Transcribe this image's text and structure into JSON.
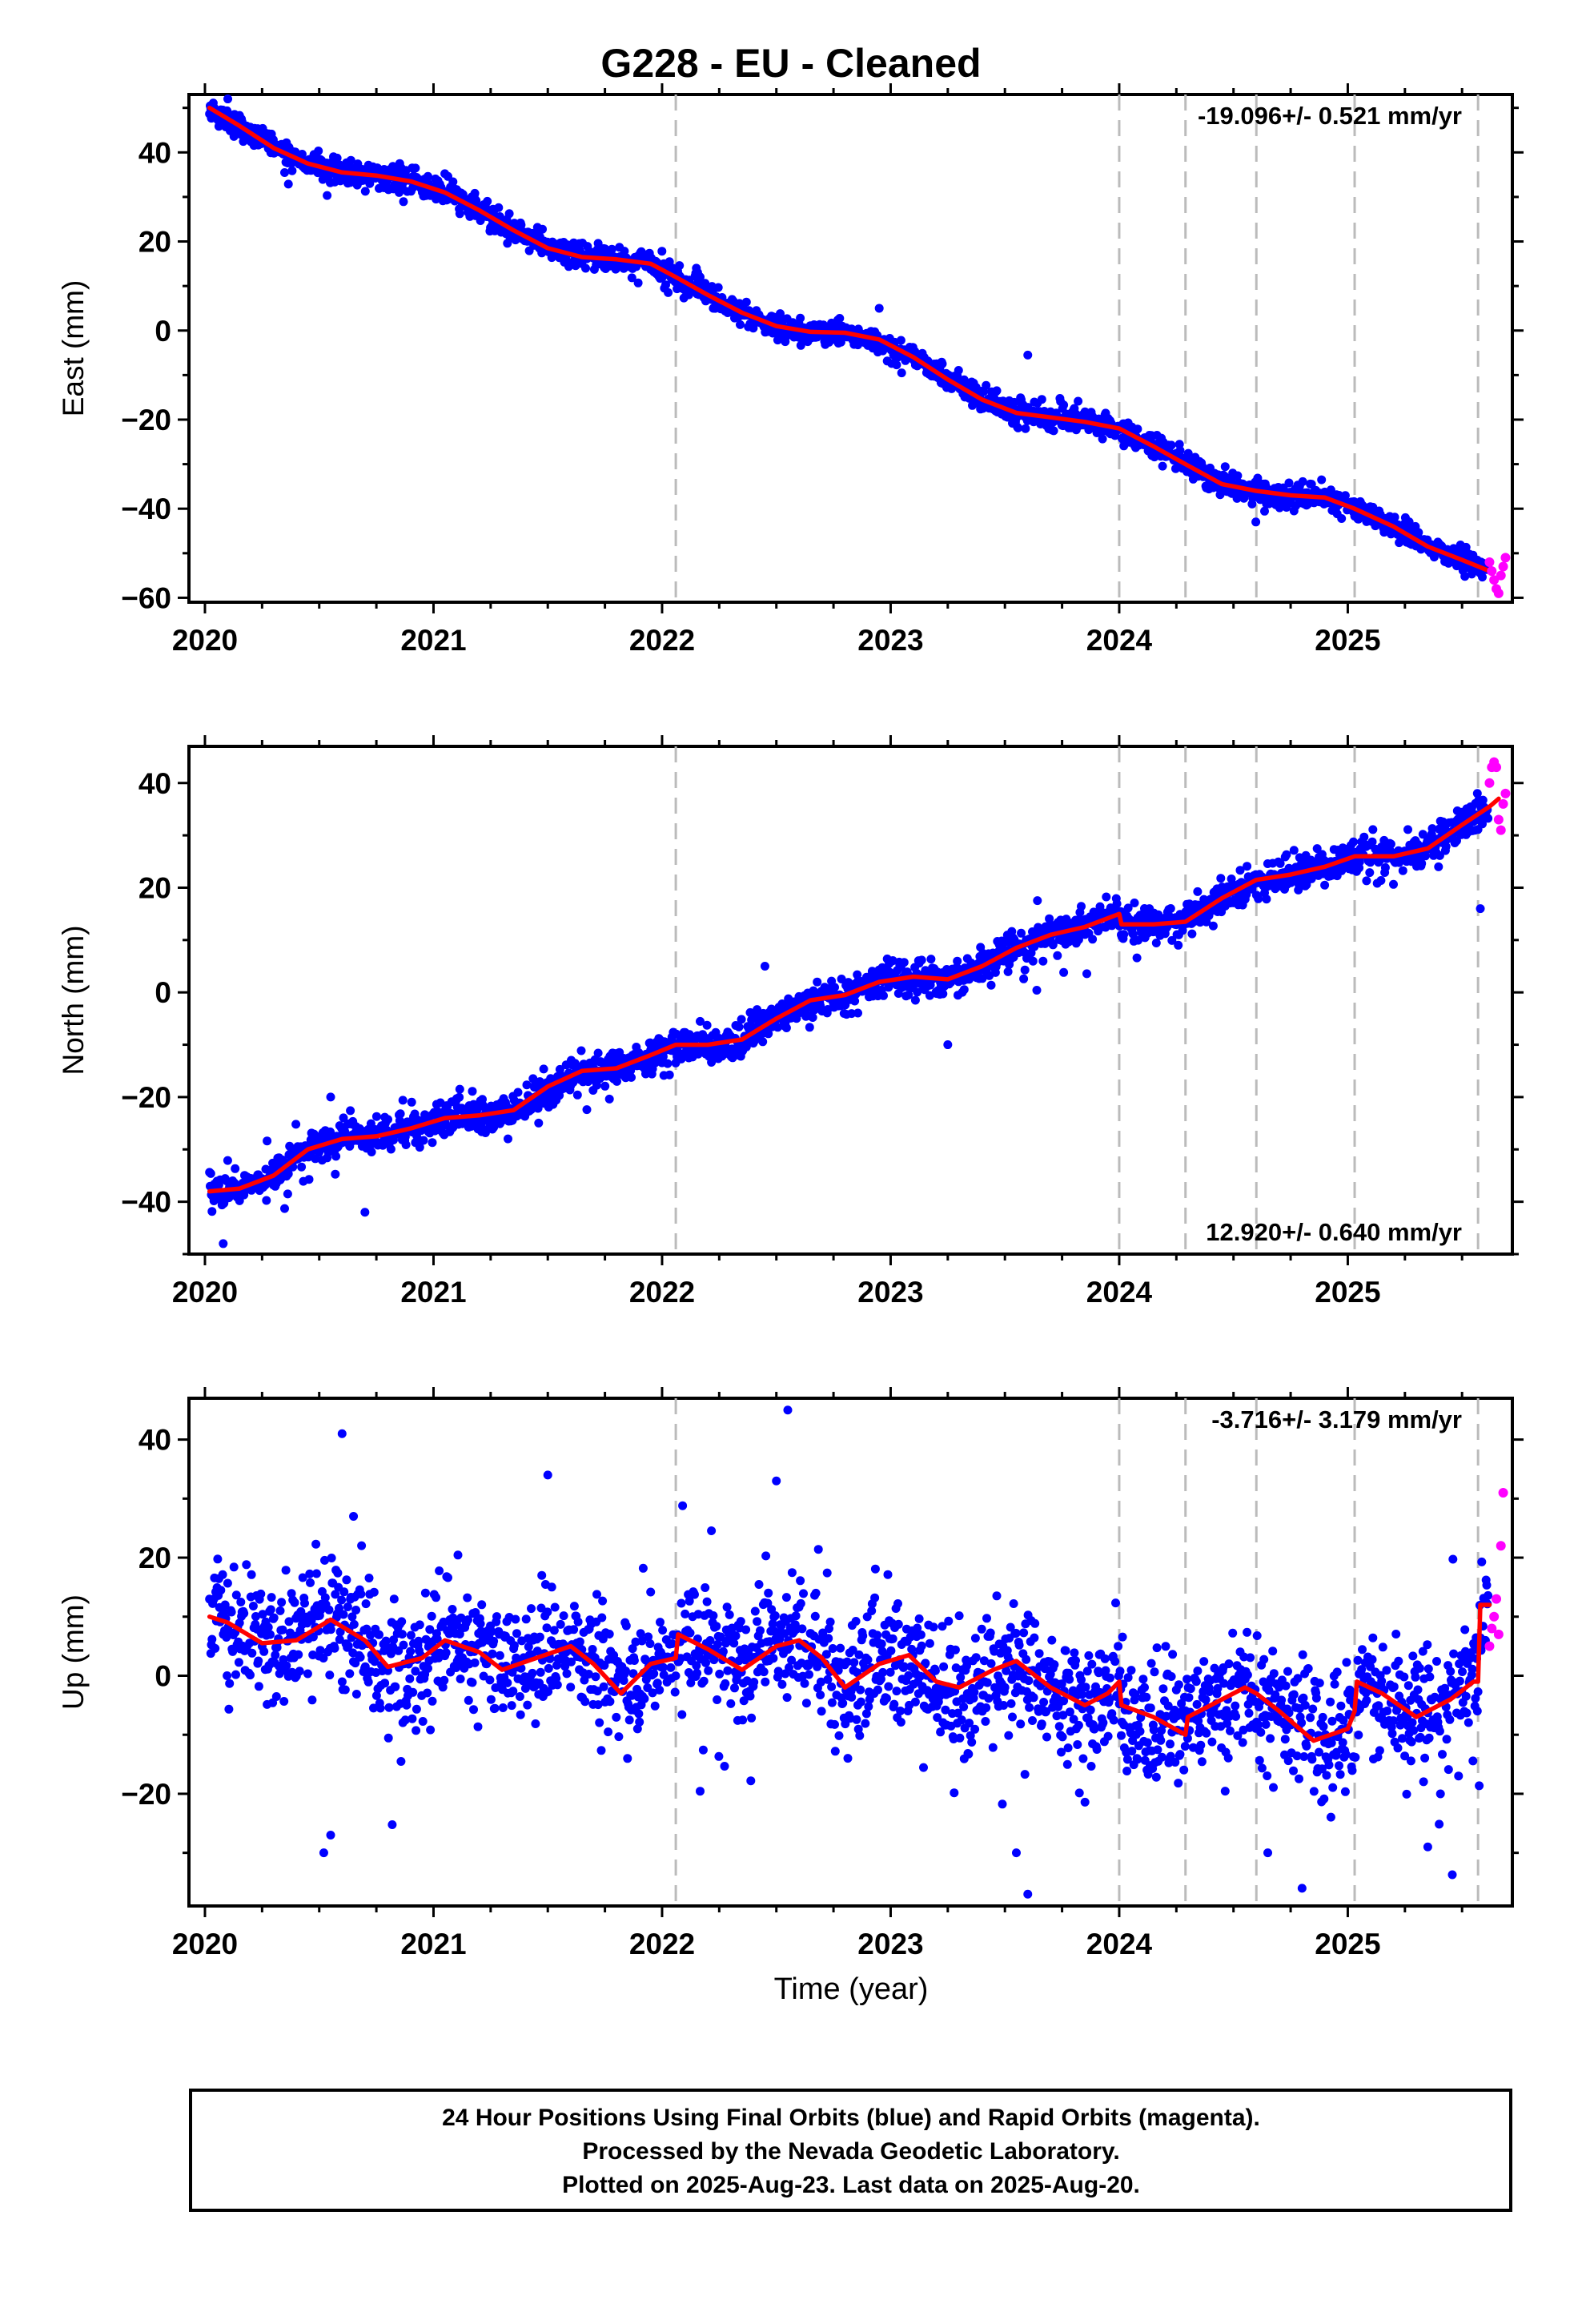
{
  "title": "G228  - EU - Cleaned",
  "x_axis_label": "Time (year)",
  "footer": {
    "line1": "24 Hour Positions Using Final Orbits (blue) and Rapid Orbits (magenta).",
    "line2": "Processed by the Nevada Geodetic Laboratory.",
    "line3": "Plotted on 2025-Aug-23. Last data on 2025-Aug-20."
  },
  "colors": {
    "final_orbits": "#0000ff",
    "rapid_orbits": "#ff00ff",
    "model": "#ff0000",
    "steps": "#bbbbbb"
  },
  "chart_data": [
    {
      "type": "scatter",
      "component": "East",
      "ylabel": "East (mm)",
      "rate_label": "-19.096+/- 0.521 mm/yr",
      "rate_position": "top-right",
      "xlim": [
        2019.93,
        2025.72
      ],
      "ylim": [
        -61,
        53
      ],
      "xticks": [
        2020,
        2021,
        2022,
        2023,
        2024,
        2025
      ],
      "yticks": [
        -60,
        -40,
        -20,
        0,
        20,
        40
      ],
      "step_dates": [
        2022.06,
        2024.0,
        2024.29,
        2024.6,
        2025.03,
        2025.57
      ],
      "model_knots": [
        [
          2020.02,
          50
        ],
        [
          2020.15,
          46
        ],
        [
          2020.3,
          41
        ],
        [
          2020.45,
          37.5
        ],
        [
          2020.6,
          35.5
        ],
        [
          2020.75,
          34.8
        ],
        [
          2020.9,
          33.5
        ],
        [
          2021.05,
          31
        ],
        [
          2021.2,
          27
        ],
        [
          2021.35,
          22.5
        ],
        [
          2021.5,
          18.5
        ],
        [
          2021.65,
          16.5
        ],
        [
          2021.8,
          16
        ],
        [
          2021.95,
          15
        ],
        [
          2022.06,
          12
        ],
        [
          2022.2,
          8
        ],
        [
          2022.35,
          4
        ],
        [
          2022.5,
          1
        ],
        [
          2022.65,
          -0.3
        ],
        [
          2022.8,
          -0.5
        ],
        [
          2022.95,
          -2
        ],
        [
          2023.1,
          -6
        ],
        [
          2023.25,
          -11
        ],
        [
          2023.4,
          -15.5
        ],
        [
          2023.55,
          -18.5
        ],
        [
          2023.7,
          -19.5
        ],
        [
          2023.85,
          -20.5
        ],
        [
          2024.0,
          -22
        ],
        [
          2024.15,
          -26
        ],
        [
          2024.29,
          -30
        ],
        [
          2024.45,
          -34.5
        ],
        [
          2024.6,
          -36
        ],
        [
          2024.75,
          -37
        ],
        [
          2024.9,
          -37.5
        ],
        [
          2025.03,
          -40
        ],
        [
          2025.2,
          -44
        ],
        [
          2025.35,
          -48.5
        ],
        [
          2025.5,
          -51.5
        ],
        [
          2025.62,
          -54
        ]
      ],
      "scatter_sd": 1.3,
      "outliers": [
        [
          2023.6,
          -5.5
        ],
        [
          2022.95,
          5
        ],
        [
          2020.1,
          52
        ]
      ],
      "rapid_points": [
        [
          2025.62,
          -52
        ],
        [
          2025.63,
          -54
        ],
        [
          2025.64,
          -56
        ],
        [
          2025.65,
          -58
        ],
        [
          2025.66,
          -59
        ],
        [
          2025.67,
          -55
        ],
        [
          2025.68,
          -53
        ],
        [
          2025.69,
          -51
        ]
      ]
    },
    {
      "type": "scatter",
      "component": "North",
      "ylabel": "North (mm)",
      "rate_label": "12.920+/- 0.640 mm/yr",
      "rate_position": "bottom-right",
      "xlim": [
        2019.93,
        2025.72
      ],
      "ylim": [
        -50,
        47
      ],
      "xticks": [
        2020,
        2021,
        2022,
        2023,
        2024,
        2025
      ],
      "yticks": [
        -40,
        -20,
        0,
        20,
        40
      ],
      "step_dates": [
        2022.06,
        2024.0,
        2024.29,
        2024.6,
        2025.03,
        2025.57
      ],
      "model_knots": [
        [
          2020.02,
          -38
        ],
        [
          2020.15,
          -37.5
        ],
        [
          2020.3,
          -35
        ],
        [
          2020.45,
          -30
        ],
        [
          2020.6,
          -28
        ],
        [
          2020.75,
          -27.5
        ],
        [
          2020.9,
          -26
        ],
        [
          2021.05,
          -24
        ],
        [
          2021.2,
          -23.5
        ],
        [
          2021.35,
          -22.5
        ],
        [
          2021.5,
          -18
        ],
        [
          2021.65,
          -15
        ],
        [
          2021.8,
          -14.5
        ],
        [
          2021.95,
          -12
        ],
        [
          2022.06,
          -10
        ],
        [
          2022.2,
          -10
        ],
        [
          2022.35,
          -9
        ],
        [
          2022.5,
          -5
        ],
        [
          2022.65,
          -1.5
        ],
        [
          2022.8,
          -0.5
        ],
        [
          2022.95,
          2
        ],
        [
          2023.1,
          3
        ],
        [
          2023.25,
          2.5
        ],
        [
          2023.4,
          5
        ],
        [
          2023.55,
          8.5
        ],
        [
          2023.7,
          11
        ],
        [
          2023.85,
          12.5
        ],
        [
          2024.0,
          15
        ],
        [
          2024.01,
          13
        ],
        [
          2024.15,
          13
        ],
        [
          2024.29,
          13.5
        ],
        [
          2024.45,
          18
        ],
        [
          2024.6,
          21.5
        ],
        [
          2024.75,
          22.5
        ],
        [
          2024.9,
          24
        ],
        [
          2025.03,
          26
        ],
        [
          2025.2,
          26
        ],
        [
          2025.35,
          27.5
        ],
        [
          2025.5,
          32
        ],
        [
          2025.62,
          35.5
        ],
        [
          2025.66,
          37
        ]
      ],
      "scatter_sd": 1.6,
      "outliers": [
        [
          2020.7,
          -42
        ],
        [
          2020.08,
          -48
        ],
        [
          2023.25,
          -10
        ],
        [
          2025.58,
          16
        ],
        [
          2020.55,
          -20
        ],
        [
          2022.45,
          5
        ]
      ],
      "rapid_points": [
        [
          2025.62,
          40
        ],
        [
          2025.63,
          43
        ],
        [
          2025.64,
          44
        ],
        [
          2025.65,
          43
        ],
        [
          2025.66,
          33
        ],
        [
          2025.67,
          31
        ],
        [
          2025.68,
          36
        ],
        [
          2025.69,
          38
        ]
      ]
    },
    {
      "type": "scatter",
      "component": "Up",
      "ylabel": "Up (mm)",
      "rate_label": "-3.716+/- 3.179 mm/yr",
      "rate_position": "top-right",
      "xlim": [
        2019.93,
        2025.72
      ],
      "ylim": [
        -39,
        47
      ],
      "xticks": [
        2020,
        2021,
        2022,
        2023,
        2024,
        2025
      ],
      "yticks": [
        -20,
        0,
        20,
        40
      ],
      "step_dates": [
        2022.06,
        2024.0,
        2024.29,
        2024.6,
        2025.03,
        2025.57
      ],
      "model_knots": [
        [
          2020.02,
          10
        ],
        [
          2020.1,
          9
        ],
        [
          2020.25,
          5.5
        ],
        [
          2020.4,
          6
        ],
        [
          2020.55,
          9.5
        ],
        [
          2020.7,
          6
        ],
        [
          2020.8,
          1.5
        ],
        [
          2020.95,
          3
        ],
        [
          2021.05,
          6
        ],
        [
          2021.2,
          4
        ],
        [
          2021.3,
          1
        ],
        [
          2021.45,
          3
        ],
        [
          2021.6,
          5
        ],
        [
          2021.7,
          2
        ],
        [
          2021.82,
          -3
        ],
        [
          2021.95,
          2
        ],
        [
          2022.06,
          3
        ],
        [
          2022.07,
          7
        ],
        [
          2022.2,
          4.5
        ],
        [
          2022.35,
          1
        ],
        [
          2022.5,
          5
        ],
        [
          2022.6,
          6
        ],
        [
          2022.7,
          3
        ],
        [
          2022.8,
          -2
        ],
        [
          2022.95,
          2
        ],
        [
          2023.08,
          3.5
        ],
        [
          2023.2,
          -1
        ],
        [
          2023.3,
          -2
        ],
        [
          2023.45,
          1
        ],
        [
          2023.55,
          2.5
        ],
        [
          2023.7,
          -2
        ],
        [
          2023.85,
          -5
        ],
        [
          2023.95,
          -3
        ],
        [
          2024.0,
          -1
        ],
        [
          2024.01,
          -5
        ],
        [
          2024.15,
          -7
        ],
        [
          2024.29,
          -10
        ],
        [
          2024.3,
          -7
        ],
        [
          2024.45,
          -4
        ],
        [
          2024.55,
          -2
        ],
        [
          2024.6,
          -3
        ],
        [
          2024.7,
          -6
        ],
        [
          2024.85,
          -11
        ],
        [
          2025.0,
          -9
        ],
        [
          2025.03,
          -6
        ],
        [
          2025.04,
          -1
        ],
        [
          2025.15,
          -3
        ],
        [
          2025.3,
          -7
        ],
        [
          2025.45,
          -4
        ],
        [
          2025.55,
          -1
        ],
        [
          2025.57,
          -1
        ],
        [
          2025.58,
          12
        ],
        [
          2025.62,
          12
        ]
      ],
      "scatter_sd": 5.0,
      "outliers": [
        [
          2020.52,
          -30
        ],
        [
          2020.6,
          41
        ],
        [
          2020.55,
          -27
        ],
        [
          2021.5,
          34
        ],
        [
          2022.55,
          45
        ],
        [
          2022.5,
          33
        ],
        [
          2023.6,
          -37
        ],
        [
          2024.8,
          -36
        ],
        [
          2025.35,
          -29
        ],
        [
          2020.65,
          27
        ],
        [
          2023.55,
          -30
        ],
        [
          2024.65,
          -30
        ]
      ],
      "rapid_points": [
        [
          2025.62,
          5
        ],
        [
          2025.63,
          8
        ],
        [
          2025.64,
          10
        ],
        [
          2025.65,
          13
        ],
        [
          2025.66,
          7
        ],
        [
          2025.67,
          22
        ],
        [
          2025.68,
          31
        ]
      ]
    }
  ]
}
